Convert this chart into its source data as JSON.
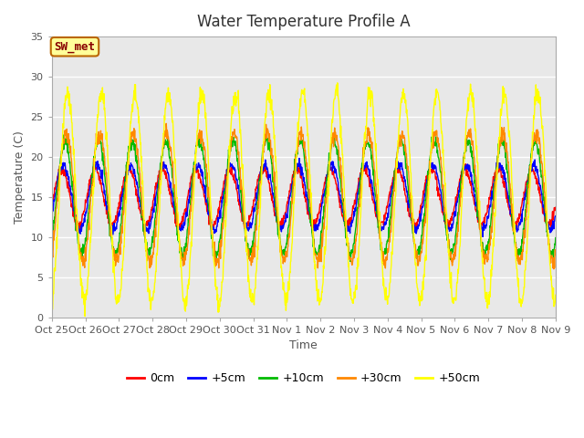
{
  "title": "Water Temperature Profile A",
  "xlabel": "Time",
  "ylabel": "Temperature (C)",
  "ylim": [
    0,
    35
  ],
  "n_days": 15,
  "xtick_labels": [
    "Oct 25",
    "Oct 26",
    "Oct 27",
    "Oct 28",
    "Oct 29",
    "Oct 30",
    "Oct 31",
    "Nov 1",
    "Nov 2",
    "Nov 3",
    "Nov 4",
    "Nov 5",
    "Nov 6",
    "Nov 7",
    "Nov 8",
    "Nov 9"
  ],
  "legend_labels": [
    "0cm",
    "+5cm",
    "+10cm",
    "+30cm",
    "+50cm"
  ],
  "line_colors": [
    "#ff0000",
    "#0000ff",
    "#00bb00",
    "#ff8800",
    "#ffff00"
  ],
  "annotation_text": "SW_met",
  "annotation_box_facecolor": "#ffff99",
  "annotation_box_edgecolor": "#bb6600",
  "annotation_text_color": "#880000",
  "plot_bg_color": "#e8e8e8",
  "grid_color": "#ffffff",
  "title_fontsize": 12,
  "label_fontsize": 9,
  "tick_fontsize": 8,
  "tick_color": "#555555",
  "spine_color": "#aaaaaa",
  "yticks": [
    0,
    5,
    10,
    15,
    20,
    25,
    30,
    35
  ],
  "series_params": {
    "0cm": {
      "base": 15.0,
      "amp": 3.5,
      "phase": 0.3,
      "noise": 0.3
    },
    "+5cm": {
      "base": 15.0,
      "amp": 4.0,
      "phase": 0.6,
      "noise": 0.3
    },
    "+10cm": {
      "base": 14.5,
      "amp": 7.0,
      "phase": 0.9,
      "noise": 0.4
    },
    "+30cm": {
      "base": 15.0,
      "amp": 8.0,
      "phase": 1.1,
      "noise": 0.5
    },
    "+50cm": {
      "base": 15.0,
      "amp": 13.0,
      "phase": 1.4,
      "noise": 0.6
    }
  }
}
